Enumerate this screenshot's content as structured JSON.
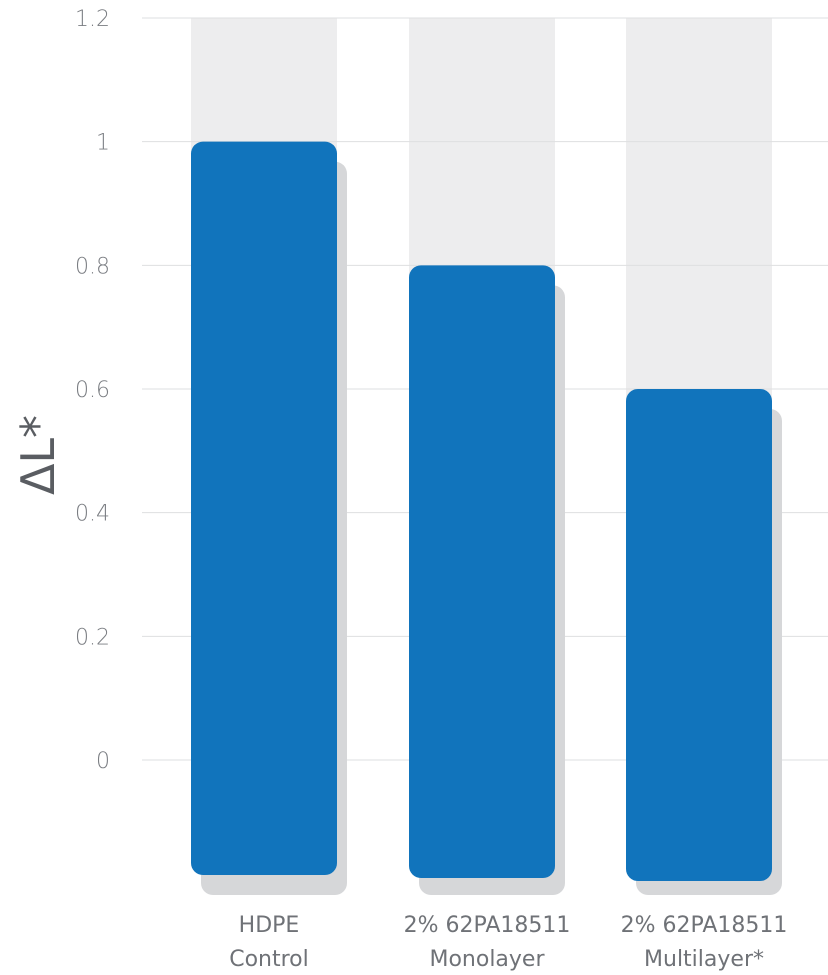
{
  "chart_data": {
    "type": "bar",
    "title": "",
    "xlabel": "",
    "ylabel": "ΔL*",
    "ylim": [
      0,
      1.2
    ],
    "yticks": [
      "0",
      "0.2",
      "0.4",
      "0.6",
      "0.8",
      "1",
      "1.2"
    ],
    "grid": true,
    "categories": [
      [
        "HDPE",
        "Control"
      ],
      [
        "2% 62PA18511",
        "Monolayer"
      ],
      [
        "2% 62PA18511",
        "Multilayer*"
      ]
    ],
    "values": [
      1,
      0.8,
      0.6
    ],
    "colors": {
      "bar": "#1174bc",
      "shadow": "#d6d7d9",
      "track": "#ededee",
      "grid": "#dedfe0"
    }
  }
}
